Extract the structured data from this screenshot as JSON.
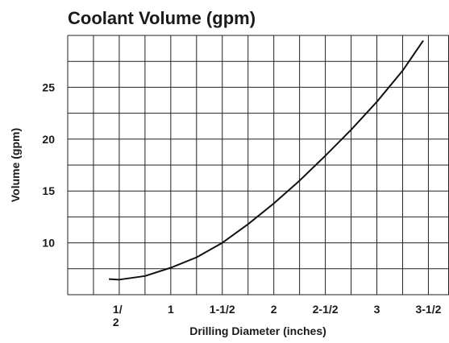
{
  "chart_data": {
    "type": "line",
    "title": "Coolant Volume (gpm)",
    "x_label": "Drilling Diameter (inches)",
    "y_label": "Volume (gpm)",
    "xlim": [
      0,
      3.7
    ],
    "ylim": [
      5,
      30
    ],
    "xticks": [
      {
        "value": 0.5,
        "label": "1/2"
      },
      1,
      {
        "value": 1.5,
        "label": "1-1/2"
      },
      2,
      {
        "value": 2.5,
        "label": "2-1/2"
      },
      3,
      {
        "value": 3.5,
        "label": "3-1/2"
      }
    ],
    "yticks": [
      10,
      15,
      20,
      25
    ],
    "x_gridlines": [
      0,
      0.25,
      0.5,
      0.75,
      1,
      1.25,
      1.5,
      1.75,
      2,
      2.25,
      2.5,
      2.75,
      3,
      3.25,
      3.5,
      3.7
    ],
    "y_gridlines": [
      5,
      7.5,
      10,
      12.5,
      15,
      17.5,
      20,
      22.5,
      25,
      27.5,
      30
    ],
    "grid": true,
    "series": [
      {
        "color": "#111111",
        "x": [
          0.4,
          0.5,
          0.75,
          1,
          1.25,
          1.5,
          1.75,
          2,
          2.25,
          2.5,
          2.75,
          3,
          3.25,
          3.45
        ],
        "values": [
          6.5,
          6.45,
          6.8,
          7.6,
          8.6,
          10,
          11.8,
          13.8,
          16,
          18.4,
          20.9,
          23.6,
          26.6,
          29.5
        ]
      }
    ]
  }
}
